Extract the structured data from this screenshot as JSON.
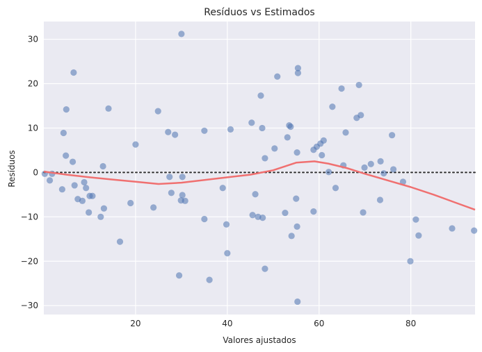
{
  "colors": {
    "plot_background": "#eaeaf2",
    "grid": "#ffffff",
    "points": "#4c72b0",
    "smooth_line": "#f07070",
    "zero_line": "#333333",
    "text": "#262626"
  },
  "chart_data": {
    "type": "scatter",
    "title": "Resíduos vs Estimados",
    "xlabel": "Valores ajustados",
    "ylabel": "Resíduos",
    "xlim": [
      0,
      94
    ],
    "ylim": [
      -32,
      34
    ],
    "x_ticks": [
      20,
      40,
      60,
      80
    ],
    "y_ticks": [
      -30,
      -20,
      -10,
      0,
      10,
      20,
      30
    ],
    "grid": true,
    "legend": "none",
    "reference_line": {
      "y": 0,
      "style": "dotted"
    },
    "points": [
      {
        "x": 0.2,
        "y": -0.3
      },
      {
        "x": 1.3,
        "y": -1.8
      },
      {
        "x": 1.8,
        "y": -0.3
      },
      {
        "x": 4.0,
        "y": -3.8
      },
      {
        "x": 4.3,
        "y": 8.9
      },
      {
        "x": 4.8,
        "y": 3.8
      },
      {
        "x": 4.9,
        "y": 14.2
      },
      {
        "x": 6.3,
        "y": 2.4
      },
      {
        "x": 6.5,
        "y": 22.5
      },
      {
        "x": 6.7,
        "y": -2.9
      },
      {
        "x": 7.4,
        "y": -6.0
      },
      {
        "x": 8.4,
        "y": -6.4
      },
      {
        "x": 8.8,
        "y": -2.2
      },
      {
        "x": 9.2,
        "y": -3.5
      },
      {
        "x": 9.8,
        "y": -9.0
      },
      {
        "x": 10.0,
        "y": -5.3
      },
      {
        "x": 10.6,
        "y": -5.3
      },
      {
        "x": 12.4,
        "y": -10.0
      },
      {
        "x": 12.9,
        "y": 1.4
      },
      {
        "x": 13.1,
        "y": -8.1
      },
      {
        "x": 14.1,
        "y": 14.4
      },
      {
        "x": 16.6,
        "y": -15.6
      },
      {
        "x": 18.9,
        "y": -6.9
      },
      {
        "x": 20.0,
        "y": 6.3
      },
      {
        "x": 23.9,
        "y": -7.9
      },
      {
        "x": 24.9,
        "y": 13.8
      },
      {
        "x": 27.1,
        "y": 9.1
      },
      {
        "x": 27.4,
        "y": -1.0
      },
      {
        "x": 27.8,
        "y": -4.6
      },
      {
        "x": 28.6,
        "y": 8.5
      },
      {
        "x": 29.5,
        "y": -23.2
      },
      {
        "x": 29.9,
        "y": -6.3
      },
      {
        "x": 30.0,
        "y": 31.2
      },
      {
        "x": 30.2,
        "y": -5.1
      },
      {
        "x": 30.2,
        "y": -1.0
      },
      {
        "x": 30.8,
        "y": -6.4
      },
      {
        "x": 35.0,
        "y": 9.4
      },
      {
        "x": 35.0,
        "y": -10.5
      },
      {
        "x": 36.1,
        "y": -24.2
      },
      {
        "x": 39.0,
        "y": -3.5
      },
      {
        "x": 39.8,
        "y": -11.7
      },
      {
        "x": 40.0,
        "y": -18.2
      },
      {
        "x": 40.7,
        "y": 9.7
      },
      {
        "x": 45.3,
        "y": 11.2
      },
      {
        "x": 45.5,
        "y": -9.6
      },
      {
        "x": 46.1,
        "y": -4.9
      },
      {
        "x": 46.7,
        "y": -10.0
      },
      {
        "x": 47.3,
        "y": 17.3
      },
      {
        "x": 47.6,
        "y": 10.0
      },
      {
        "x": 47.7,
        "y": -10.2
      },
      {
        "x": 48.2,
        "y": -21.7
      },
      {
        "x": 48.2,
        "y": 3.2
      },
      {
        "x": 50.3,
        "y": 5.4
      },
      {
        "x": 50.9,
        "y": 21.6
      },
      {
        "x": 52.6,
        "y": -9.1
      },
      {
        "x": 53.1,
        "y": 7.9
      },
      {
        "x": 53.5,
        "y": 10.6
      },
      {
        "x": 53.8,
        "y": 10.3
      },
      {
        "x": 54.0,
        "y": -14.3
      },
      {
        "x": 55.0,
        "y": -5.9
      },
      {
        "x": 55.2,
        "y": 4.5
      },
      {
        "x": 55.2,
        "y": -12.2
      },
      {
        "x": 55.3,
        "y": -29.1
      },
      {
        "x": 55.4,
        "y": 22.4
      },
      {
        "x": 55.4,
        "y": 23.5
      },
      {
        "x": 58.8,
        "y": -8.8
      },
      {
        "x": 58.8,
        "y": 5.1
      },
      {
        "x": 59.5,
        "y": 5.8
      },
      {
        "x": 60.3,
        "y": 6.5
      },
      {
        "x": 60.6,
        "y": 3.9
      },
      {
        "x": 61.0,
        "y": 7.2
      },
      {
        "x": 62.1,
        "y": 0.1
      },
      {
        "x": 62.9,
        "y": 14.8
      },
      {
        "x": 63.6,
        "y": -3.5
      },
      {
        "x": 64.9,
        "y": 18.9
      },
      {
        "x": 65.3,
        "y": 1.6
      },
      {
        "x": 65.8,
        "y": 9.0
      },
      {
        "x": 68.2,
        "y": 12.3
      },
      {
        "x": 68.7,
        "y": 19.7
      },
      {
        "x": 69.1,
        "y": 12.9
      },
      {
        "x": 69.6,
        "y": -9.0
      },
      {
        "x": 69.9,
        "y": 1.1
      },
      {
        "x": 71.3,
        "y": 1.9
      },
      {
        "x": 73.3,
        "y": -6.2
      },
      {
        "x": 73.4,
        "y": 2.5
      },
      {
        "x": 74.1,
        "y": -0.2
      },
      {
        "x": 75.9,
        "y": 8.4
      },
      {
        "x": 76.2,
        "y": 0.7
      },
      {
        "x": 78.3,
        "y": -2.1
      },
      {
        "x": 79.9,
        "y": -20.0
      },
      {
        "x": 81.1,
        "y": -10.6
      },
      {
        "x": 81.7,
        "y": -14.2
      },
      {
        "x": 89.0,
        "y": -12.6
      },
      {
        "x": 93.8,
        "y": -13.1
      }
    ],
    "smooth_line": [
      {
        "x": 0,
        "y": 0.2
      },
      {
        "x": 5,
        "y": -0.5
      },
      {
        "x": 10,
        "y": -1.1
      },
      {
        "x": 15,
        "y": -1.6
      },
      {
        "x": 20,
        "y": -2.1
      },
      {
        "x": 25,
        "y": -2.6
      },
      {
        "x": 30,
        "y": -2.3
      },
      {
        "x": 35,
        "y": -1.7
      },
      {
        "x": 40,
        "y": -1.1
      },
      {
        "x": 45,
        "y": -0.5
      },
      {
        "x": 50,
        "y": 0.5
      },
      {
        "x": 55,
        "y": 2.2
      },
      {
        "x": 59,
        "y": 2.5
      },
      {
        "x": 62,
        "y": 2.0
      },
      {
        "x": 66,
        "y": 1.0
      },
      {
        "x": 70,
        "y": -0.3
      },
      {
        "x": 75,
        "y": -1.8
      },
      {
        "x": 80,
        "y": -3.3
      },
      {
        "x": 85,
        "y": -5.0
      },
      {
        "x": 90,
        "y": -6.9
      },
      {
        "x": 94,
        "y": -8.4
      }
    ]
  }
}
